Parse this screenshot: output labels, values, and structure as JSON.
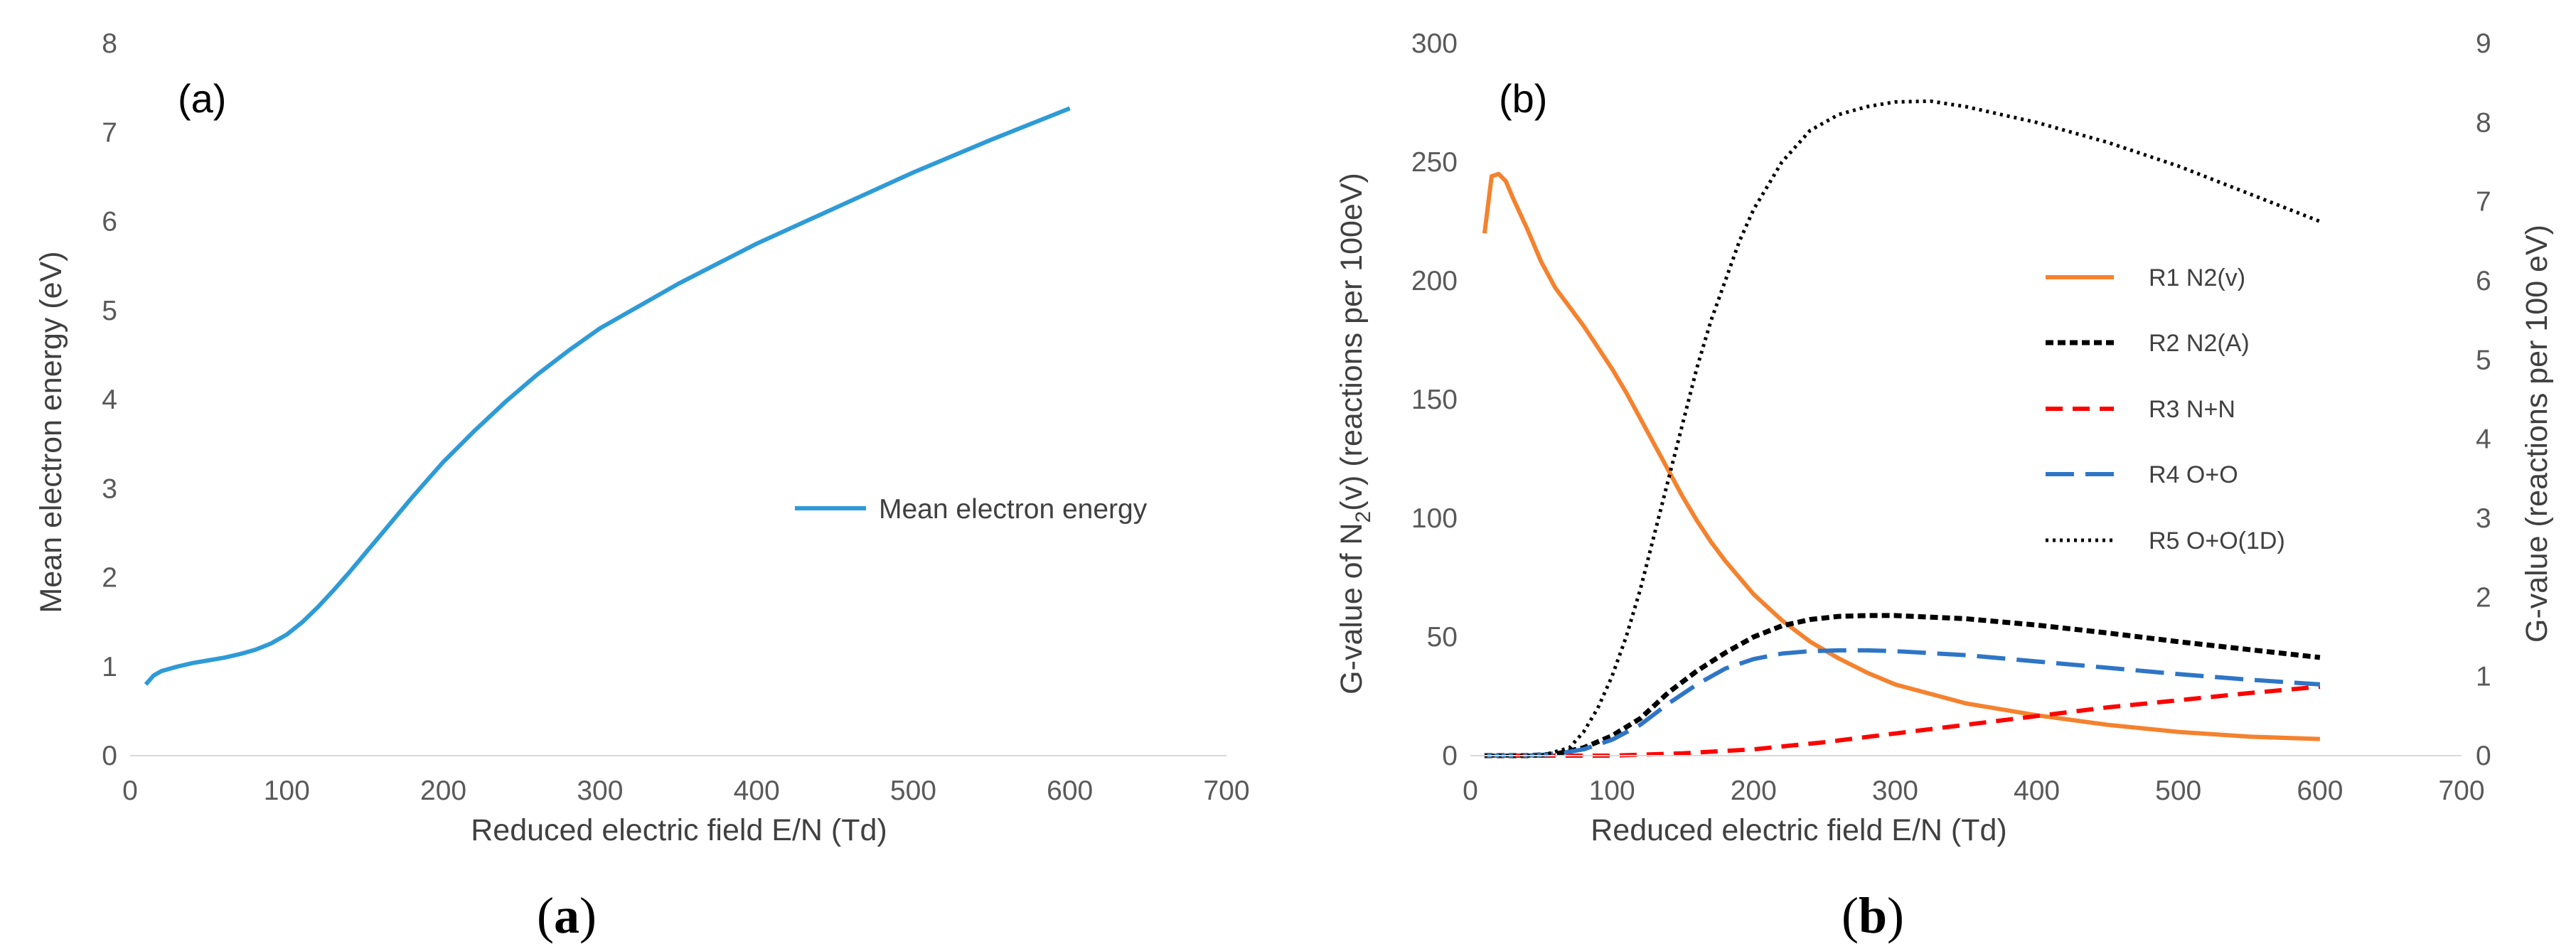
{
  "chart_data": [
    {
      "type": "line",
      "panel_label": "(a)",
      "caption": {
        "open": "(",
        "letter": "a",
        "close": ")"
      },
      "xlabel": "Reduced electric field E/N (Td)",
      "ylabel": "Mean electron energy (eV)",
      "xlim": [
        0,
        700
      ],
      "ylim": [
        0,
        8
      ],
      "xticks": [
        0,
        100,
        200,
        300,
        400,
        500,
        600,
        700
      ],
      "yticks": [
        0,
        1,
        2,
        3,
        4,
        5,
        6,
        7,
        8
      ],
      "grid": false,
      "legend_position": "center-right",
      "series": [
        {
          "name": "Mean electron energy",
          "color": "#2E9BD6",
          "dash": "solid",
          "x": [
            10,
            15,
            20,
            30,
            40,
            50,
            60,
            70,
            80,
            90,
            100,
            110,
            120,
            130,
            140,
            150,
            160,
            170,
            180,
            190,
            200,
            220,
            240,
            260,
            280,
            300,
            350,
            400,
            450,
            500,
            550,
            600
          ],
          "y": [
            0.8,
            0.9,
            0.95,
            1.0,
            1.04,
            1.07,
            1.1,
            1.14,
            1.19,
            1.26,
            1.36,
            1.5,
            1.67,
            1.86,
            2.06,
            2.27,
            2.48,
            2.69,
            2.9,
            3.1,
            3.3,
            3.65,
            3.98,
            4.28,
            4.55,
            4.8,
            5.3,
            5.75,
            6.15,
            6.55,
            6.92,
            7.27
          ]
        }
      ]
    },
    {
      "type": "line",
      "panel_label": "(b)",
      "caption": {
        "open": "(",
        "letter": "b",
        "close": ")"
      },
      "xlabel": "Reduced electric field  E/N (Td)",
      "ylabel": {
        "pre": "G-value of N",
        "sub": "2",
        "post": "(v) (reactions per 100eV)"
      },
      "ylabel_right": "G-value (reactions per 100 eV)",
      "xlim": [
        0,
        700
      ],
      "ylim": [
        0,
        300
      ],
      "ylim_right": [
        0,
        9
      ],
      "xticks": [
        0,
        100,
        200,
        300,
        400,
        500,
        600,
        700
      ],
      "yticks": [
        0,
        50,
        100,
        150,
        200,
        250,
        300
      ],
      "yticks_right": [
        0,
        1,
        2,
        3,
        4,
        5,
        6,
        7,
        8,
        9
      ],
      "grid": false,
      "legend_position": "center-right",
      "series": [
        {
          "name": "R1 N2(v)",
          "axis": "left",
          "color": "#F4822E",
          "dash": "solid",
          "x": [
            10,
            15,
            20,
            25,
            30,
            40,
            50,
            60,
            70,
            80,
            90,
            100,
            110,
            120,
            130,
            140,
            150,
            160,
            170,
            180,
            200,
            220,
            240,
            260,
            280,
            300,
            350,
            400,
            450,
            500,
            550,
            600
          ],
          "y": [
            220,
            244,
            245,
            242,
            235,
            222,
            208,
            197,
            189,
            181,
            172,
            163,
            153,
            142,
            131,
            120,
            109,
            99,
            90,
            82,
            68,
            57,
            48,
            41,
            35,
            30,
            22,
            17,
            13,
            10,
            8,
            7
          ]
        },
        {
          "name": "R2 N2(A)",
          "axis": "right",
          "color": "#000000",
          "dash": "short",
          "x": [
            10,
            40,
            60,
            80,
            100,
            120,
            140,
            160,
            180,
            200,
            220,
            240,
            260,
            280,
            300,
            350,
            400,
            450,
            500,
            550,
            600
          ],
          "y": [
            0,
            0,
            0.02,
            0.1,
            0.25,
            0.47,
            0.8,
            1.07,
            1.3,
            1.5,
            1.64,
            1.72,
            1.76,
            1.77,
            1.77,
            1.73,
            1.65,
            1.55,
            1.44,
            1.34,
            1.24
          ]
        },
        {
          "name": "R3 N+N",
          "axis": "right",
          "color": "#FF0000",
          "dash": "medium",
          "x": [
            10,
            100,
            150,
            200,
            250,
            300,
            350,
            400,
            450,
            500,
            550,
            600
          ],
          "y": [
            0,
            0,
            0.03,
            0.08,
            0.17,
            0.28,
            0.39,
            0.5,
            0.61,
            0.7,
            0.79,
            0.87
          ]
        },
        {
          "name": "R4 O+O",
          "axis": "right",
          "color": "#2E75C6",
          "dash": "long",
          "x": [
            10,
            40,
            60,
            80,
            100,
            120,
            140,
            160,
            180,
            200,
            220,
            240,
            260,
            280,
            300,
            350,
            400,
            450,
            500,
            550,
            600
          ],
          "y": [
            0,
            0,
            0.02,
            0.08,
            0.2,
            0.39,
            0.66,
            0.9,
            1.1,
            1.22,
            1.29,
            1.32,
            1.33,
            1.33,
            1.32,
            1.27,
            1.19,
            1.11,
            1.03,
            0.96,
            0.9
          ]
        },
        {
          "name": "R5 O+O(1D)",
          "axis": "right",
          "color": "#000000",
          "dash": "dotted",
          "x": [
            10,
            50,
            70,
            80,
            90,
            100,
            110,
            120,
            130,
            140,
            150,
            160,
            170,
            180,
            190,
            200,
            220,
            240,
            260,
            280,
            300,
            325,
            350,
            400,
            450,
            500,
            550,
            600
          ],
          "y": [
            0,
            0,
            0.1,
            0.3,
            0.6,
            1.0,
            1.5,
            2.1,
            2.8,
            3.5,
            4.2,
            4.9,
            5.5,
            6.0,
            6.5,
            6.9,
            7.5,
            7.9,
            8.1,
            8.2,
            8.26,
            8.27,
            8.2,
            8.0,
            7.75,
            7.45,
            7.1,
            6.75
          ]
        }
      ]
    }
  ]
}
